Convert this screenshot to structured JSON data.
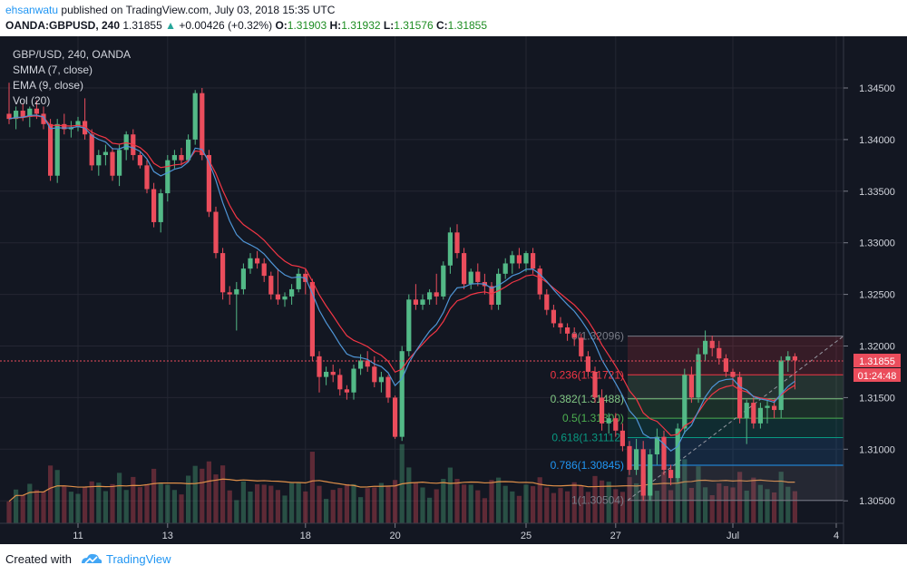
{
  "header": {
    "author": "ehsanwatu",
    "published": "published on TradingView.com, July 03, 2018 15:35 UTC",
    "symbol": "OANDA:GBPUSD, 240",
    "last": "1.31855",
    "change_arrow": "▲",
    "change": "+0.00426 (+0.32%)",
    "o_label": "O:",
    "o_val": "1.31903",
    "h_label": "H:",
    "h_val": "1.31932",
    "l_label": "L:",
    "l_val": "1.31576",
    "c_label": "C:",
    "c_val": "1.31855"
  },
  "legend": {
    "symbol": "GBP/USD, 240, OANDA",
    "smma": "SMMA (7, close)",
    "ema": "EMA (9, close)",
    "vol": "Vol (20)"
  },
  "colors": {
    "background": "#131722",
    "up": "#53b987",
    "down": "#eb4d5c",
    "smma": "#f23645",
    "ema": "#4f95d6",
    "volume_ma": "#e0904a"
  },
  "chart_data": {
    "type": "candlestick",
    "y_axis_ticks": [
      "1.34500",
      "1.34000",
      "1.33500",
      "1.33000",
      "1.32500",
      "1.32000",
      "1.31500",
      "1.31000",
      "1.30500"
    ],
    "ylim": [
      1.302,
      1.348
    ],
    "x_axis_ticks": [
      "11",
      "13",
      "18",
      "20",
      "25",
      "27",
      "Jul",
      "4"
    ],
    "last_price_label": "1.31855",
    "countdown_label": "01:24:48",
    "fib_levels": [
      {
        "label": "0(1.32096)",
        "price": 1.32096
      },
      {
        "label": "0.236(1.31721)",
        "price": 1.31721
      },
      {
        "label": "0.382(1.31488)",
        "price": 1.31488
      },
      {
        "label": "0.5(1.31300)",
        "price": 1.313
      },
      {
        "label": "0.618(1.31112)",
        "price": 1.31112
      },
      {
        "label": "0.786(1.30845)",
        "price": 1.30845
      },
      {
        "label": "1(1.30504)",
        "price": 1.30504
      }
    ],
    "candles": [
      [
        1.3425,
        1.3455,
        1.3415,
        1.342
      ],
      [
        1.342,
        1.3432,
        1.341,
        1.3428
      ],
      [
        1.3428,
        1.3435,
        1.3418,
        1.3422
      ],
      [
        1.3422,
        1.3432,
        1.3412,
        1.343
      ],
      [
        1.343,
        1.3438,
        1.342,
        1.3425
      ],
      [
        1.3425,
        1.3432,
        1.341,
        1.3415
      ],
      [
        1.3415,
        1.342,
        1.336,
        1.3365
      ],
      [
        1.3365,
        1.342,
        1.3358,
        1.3415
      ],
      [
        1.3415,
        1.3425,
        1.3405,
        1.341
      ],
      [
        1.341,
        1.3418,
        1.3402,
        1.3412
      ],
      [
        1.3412,
        1.3422,
        1.3408,
        1.3418
      ],
      [
        1.3418,
        1.344,
        1.34,
        1.3405
      ],
      [
        1.3405,
        1.341,
        1.337,
        1.3375
      ],
      [
        1.3375,
        1.339,
        1.3365,
        1.3385
      ],
      [
        1.3385,
        1.3395,
        1.3375,
        1.3388
      ],
      [
        1.3388,
        1.3392,
        1.336,
        1.3365
      ],
      [
        1.3365,
        1.3395,
        1.3355,
        1.339
      ],
      [
        1.339,
        1.3408,
        1.338,
        1.3405
      ],
      [
        1.3405,
        1.341,
        1.338,
        1.3385
      ],
      [
        1.3385,
        1.3388,
        1.3372,
        1.3375
      ],
      [
        1.3375,
        1.338,
        1.3348,
        1.3352
      ],
      [
        1.3352,
        1.3358,
        1.3315,
        1.332
      ],
      [
        1.332,
        1.3352,
        1.331,
        1.3348
      ],
      [
        1.3348,
        1.3385,
        1.334,
        1.338
      ],
      [
        1.338,
        1.339,
        1.3372,
        1.3385
      ],
      [
        1.3385,
        1.3392,
        1.3375,
        1.338
      ],
      [
        1.338,
        1.3405,
        1.3378,
        1.34
      ],
      [
        1.34,
        1.3448,
        1.3395,
        1.3445
      ],
      [
        1.3445,
        1.345,
        1.338,
        1.3385
      ],
      [
        1.3385,
        1.339,
        1.3325,
        1.333
      ],
      [
        1.333,
        1.3335,
        1.3285,
        1.329
      ],
      [
        1.329,
        1.3295,
        1.3245,
        1.3252
      ],
      [
        1.3252,
        1.3258,
        1.324,
        1.325
      ],
      [
        1.325,
        1.3262,
        1.3215,
        1.3255
      ],
      [
        1.3255,
        1.328,
        1.325,
        1.3275
      ],
      [
        1.3275,
        1.329,
        1.327,
        1.3285
      ],
      [
        1.3285,
        1.3292,
        1.3275,
        1.328
      ],
      [
        1.328,
        1.3285,
        1.3262,
        1.3268
      ],
      [
        1.3268,
        1.3272,
        1.3245,
        1.325
      ],
      [
        1.325,
        1.3275,
        1.324,
        1.3245
      ],
      [
        1.3245,
        1.3252,
        1.3238,
        1.3248
      ],
      [
        1.3248,
        1.326,
        1.324,
        1.3255
      ],
      [
        1.3255,
        1.3275,
        1.3252,
        1.327
      ],
      [
        1.327,
        1.3275,
        1.325,
        1.3262
      ],
      [
        1.3262,
        1.3265,
        1.3185,
        1.319
      ],
      [
        1.319,
        1.3195,
        1.3155,
        1.317
      ],
      [
        1.317,
        1.318,
        1.3162,
        1.3175
      ],
      [
        1.3175,
        1.3182,
        1.3165,
        1.3172
      ],
      [
        1.3172,
        1.3178,
        1.3152,
        1.3158
      ],
      [
        1.3158,
        1.3162,
        1.3148,
        1.3155
      ],
      [
        1.3155,
        1.3182,
        1.3148,
        1.3178
      ],
      [
        1.3178,
        1.3192,
        1.3172,
        1.3186
      ],
      [
        1.3186,
        1.3195,
        1.3175,
        1.318
      ],
      [
        1.318,
        1.319,
        1.316,
        1.3165
      ],
      [
        1.3165,
        1.3175,
        1.3155,
        1.317
      ],
      [
        1.317,
        1.3172,
        1.3145,
        1.315
      ],
      [
        1.315,
        1.3152,
        1.311,
        1.3112
      ],
      [
        1.3112,
        1.32,
        1.3108,
        1.3195
      ],
      [
        1.3195,
        1.325,
        1.319,
        1.3245
      ],
      [
        1.3245,
        1.326,
        1.3235,
        1.324
      ],
      [
        1.324,
        1.325,
        1.3235,
        1.3245
      ],
      [
        1.3245,
        1.3255,
        1.324,
        1.3252
      ],
      [
        1.3252,
        1.327,
        1.324,
        1.3248
      ],
      [
        1.3248,
        1.3282,
        1.3245,
        1.3278
      ],
      [
        1.3278,
        1.3315,
        1.327,
        1.331
      ],
      [
        1.331,
        1.3318,
        1.3285,
        1.329
      ],
      [
        1.329,
        1.3295,
        1.3255,
        1.326
      ],
      [
        1.326,
        1.3275,
        1.3255,
        1.3272
      ],
      [
        1.3272,
        1.328,
        1.3258,
        1.3262
      ],
      [
        1.3262,
        1.327,
        1.325,
        1.3258
      ],
      [
        1.3258,
        1.3262,
        1.3235,
        1.324
      ],
      [
        1.324,
        1.3275,
        1.3235,
        1.327
      ],
      [
        1.327,
        1.3285,
        1.3265,
        1.328
      ],
      [
        1.328,
        1.3292,
        1.327,
        1.3288
      ],
      [
        1.3288,
        1.3295,
        1.3275,
        1.328
      ],
      [
        1.328,
        1.3292,
        1.3272,
        1.329
      ],
      [
        1.329,
        1.3295,
        1.327,
        1.3275
      ],
      [
        1.3275,
        1.3278,
        1.3245,
        1.325
      ],
      [
        1.325,
        1.3255,
        1.323,
        1.3235
      ],
      [
        1.3235,
        1.324,
        1.3218,
        1.3222
      ],
      [
        1.3222,
        1.3228,
        1.3212,
        1.3218
      ],
      [
        1.3218,
        1.3222,
        1.3205,
        1.3212
      ],
      [
        1.3212,
        1.3218,
        1.32,
        1.3208
      ],
      [
        1.3208,
        1.3212,
        1.3185,
        1.319
      ],
      [
        1.319,
        1.3195,
        1.317,
        1.3175
      ],
      [
        1.3175,
        1.318,
        1.3145,
        1.315
      ],
      [
        1.315,
        1.3158,
        1.3118,
        1.3125
      ],
      [
        1.3125,
        1.3135,
        1.3115,
        1.313
      ],
      [
        1.313,
        1.3135,
        1.3112,
        1.3118
      ],
      [
        1.3118,
        1.3125,
        1.3098,
        1.3103
      ],
      [
        1.3103,
        1.3108,
        1.3075,
        1.308
      ],
      [
        1.308,
        1.311,
        1.3075,
        1.31
      ],
      [
        1.31,
        1.3108,
        1.305,
        1.3055
      ],
      [
        1.3055,
        1.31,
        1.305,
        1.3095
      ],
      [
        1.3095,
        1.312,
        1.3085,
        1.3112
      ],
      [
        1.3112,
        1.3118,
        1.3075,
        1.308
      ],
      [
        1.308,
        1.3085,
        1.3065,
        1.3072
      ],
      [
        1.3072,
        1.3125,
        1.3068,
        1.312
      ],
      [
        1.312,
        1.3178,
        1.3115,
        1.3172
      ],
      [
        1.3172,
        1.318,
        1.3145,
        1.315
      ],
      [
        1.315,
        1.3198,
        1.3145,
        1.3192
      ],
      [
        1.3192,
        1.3215,
        1.3185,
        1.3205
      ],
      [
        1.3205,
        1.321,
        1.319,
        1.3198
      ],
      [
        1.3198,
        1.3205,
        1.3182,
        1.3188
      ],
      [
        1.3188,
        1.3192,
        1.317,
        1.3175
      ],
      [
        1.3175,
        1.3178,
        1.3162,
        1.317
      ],
      [
        1.317,
        1.3175,
        1.3125,
        1.313
      ],
      [
        1.313,
        1.3148,
        1.3105,
        1.3145
      ],
      [
        1.3145,
        1.315,
        1.312,
        1.3125
      ],
      [
        1.3125,
        1.3145,
        1.312,
        1.314
      ],
      [
        1.314,
        1.3148,
        1.3125,
        1.3142
      ],
      [
        1.3142,
        1.3148,
        1.313,
        1.3138
      ],
      [
        1.3138,
        1.319,
        1.313,
        1.3186
      ],
      [
        1.3186,
        1.3195,
        1.3175,
        1.319
      ],
      [
        1.319,
        1.3193,
        1.3158,
        1.3186
      ]
    ]
  }
}
